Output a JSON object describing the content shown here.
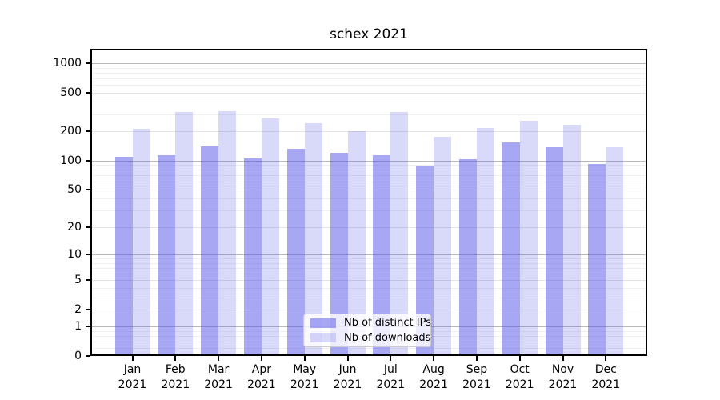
{
  "title": "schex 2021",
  "chart_data": {
    "type": "bar",
    "title": "schex 2021",
    "categories": [
      "Jan 2021",
      "Feb 2021",
      "Mar 2021",
      "Apr 2021",
      "May 2021",
      "Jun 2021",
      "Jul 2021",
      "Aug 2021",
      "Sep 2021",
      "Oct 2021",
      "Nov 2021",
      "Dec 2021"
    ],
    "series": [
      {
        "name": "Nb of distinct IPs",
        "color": "rgba(80,80,232,0.50)",
        "values": [
          110,
          114,
          139,
          105,
          131,
          121,
          114,
          86,
          102,
          154,
          138,
          91
        ]
      },
      {
        "name": "Nb of downloads",
        "color": "rgba(80,80,232,0.22)",
        "values": [
          213,
          318,
          324,
          272,
          242,
          201,
          318,
          175,
          218,
          255,
          235,
          136
        ]
      }
    ],
    "xlabel": "",
    "ylabel": "",
    "yscale": "log1p",
    "ylim": [
      0,
      1000
    ],
    "y_ticks": [
      1000,
      500,
      200,
      100,
      50,
      20,
      10,
      5,
      2,
      1,
      0
    ],
    "y_minor_ticks": [
      0.2,
      0.4,
      0.6,
      0.8,
      3,
      4,
      6,
      7,
      8,
      9,
      30,
      40,
      60,
      70,
      80,
      90,
      300,
      400,
      600,
      700,
      800,
      900
    ],
    "grid": "on",
    "legend_position": "lower center"
  },
  "legend": {
    "items": [
      {
        "label": "Nb of distinct IPs",
        "color": "rgba(80,80,232,0.50)"
      },
      {
        "label": "Nb of downloads",
        "color": "rgba(80,80,232,0.22)"
      }
    ]
  },
  "colors": {
    "grid_major": "#b9b9b9",
    "grid_mid": "#e4e4e4",
    "grid_minor": "#f0f0f0",
    "spine": "#000000"
  }
}
